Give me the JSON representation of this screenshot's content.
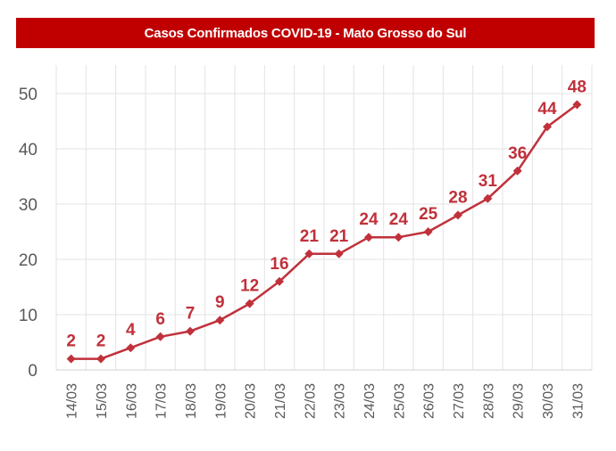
{
  "title": "Casos Confirmados COVID-19 -  Mato Grosso do Sul",
  "colors": {
    "banner": "#c00000",
    "line": "#c0313b",
    "grid": "#e3e3e3",
    "tick_text": "#595959"
  },
  "chart_data": {
    "type": "line",
    "title": "Casos Confirmados COVID-19 -  Mato Grosso do Sul",
    "xlabel": "",
    "ylabel": "",
    "categories": [
      "14/03",
      "15/03",
      "16/03",
      "17/03",
      "18/03",
      "19/03",
      "20/03",
      "21/03",
      "22/03",
      "23/03",
      "24/03",
      "25/03",
      "26/03",
      "27/03",
      "28/03",
      "29/03",
      "30/03",
      "31/03"
    ],
    "series": [
      {
        "name": "Casos Confirmados",
        "values": [
          2,
          2,
          4,
          6,
          7,
          9,
          12,
          16,
          21,
          21,
          24,
          24,
          25,
          28,
          31,
          36,
          44,
          48
        ],
        "marker": "diamond",
        "data_labels": true
      }
    ],
    "ylim": [
      0,
      50
    ],
    "yticks": [
      0,
      10,
      20,
      30,
      40,
      50
    ],
    "grid": true,
    "legend": "none"
  }
}
